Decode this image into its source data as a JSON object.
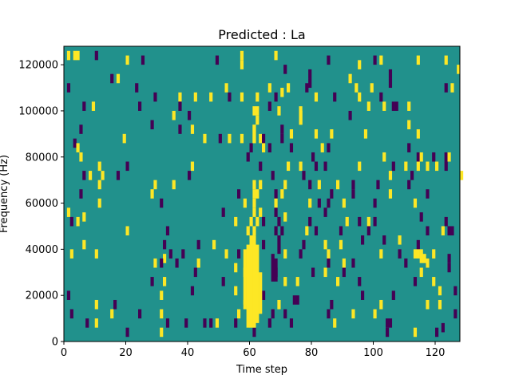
{
  "chart_data": {
    "type": "heatmap",
    "title": "Predicted : La",
    "xlabel": "Time step",
    "ylabel": "Frequency (Hz)",
    "xlim": [
      0,
      128
    ],
    "ylim": [
      0,
      128000
    ],
    "x_ticks": [
      0,
      20,
      40,
      60,
      80,
      100,
      120
    ],
    "y_ticks": [
      0,
      20000,
      40000,
      60000,
      80000,
      100000,
      120000
    ],
    "value_levels": [
      -1,
      0,
      1
    ],
    "colors": {
      "low": "#440154",
      "mid": "#21918c",
      "high": "#fde725"
    },
    "background_value": 0,
    "cell_height_hz": 4000,
    "cells": [
      [
        1,
        122000,
        1
      ],
      [
        3,
        122000,
        1
      ],
      [
        4,
        122000,
        1
      ],
      [
        10,
        122000,
        -1
      ],
      [
        20,
        120000,
        1
      ],
      [
        25,
        120000,
        -1
      ],
      [
        49,
        120000,
        -1
      ],
      [
        57,
        122000,
        1
      ],
      [
        57,
        118000,
        1
      ],
      [
        68,
        122000,
        1
      ],
      [
        85,
        120000,
        -1
      ],
      [
        95,
        118000,
        1
      ],
      [
        100,
        120000,
        -1
      ],
      [
        102,
        120000,
        1
      ],
      [
        114,
        120000,
        1
      ],
      [
        123,
        120000,
        1
      ],
      [
        127,
        116000,
        1
      ],
      [
        15,
        112000,
        -1
      ],
      [
        17,
        112000,
        1
      ],
      [
        71,
        116000,
        -1
      ],
      [
        79,
        114000,
        -1
      ],
      [
        79,
        110000,
        -1
      ],
      [
        92,
        112000,
        1
      ],
      [
        105,
        114000,
        -1
      ],
      [
        105,
        110000,
        -1
      ],
      [
        1,
        108000,
        -1
      ],
      [
        23,
        108000,
        -1
      ],
      [
        52,
        108000,
        1
      ],
      [
        66,
        108000,
        1
      ],
      [
        70,
        106000,
        1
      ],
      [
        72,
        108000,
        1
      ],
      [
        78,
        108000,
        -1
      ],
      [
        94,
        108000,
        1
      ],
      [
        99,
        108000,
        1
      ],
      [
        123,
        108000,
        -1
      ],
      [
        125,
        108000,
        1
      ],
      [
        29,
        104000,
        -1
      ],
      [
        37,
        104000,
        1
      ],
      [
        42,
        104000,
        1
      ],
      [
        47,
        104000,
        1
      ],
      [
        53,
        104000,
        -1
      ],
      [
        57,
        104000,
        1
      ],
      [
        62,
        104000,
        1
      ],
      [
        68,
        104000,
        -1
      ],
      [
        81,
        104000,
        1
      ],
      [
        87,
        104000,
        -1
      ],
      [
        95,
        104000,
        1
      ],
      [
        102,
        104000,
        -1
      ],
      [
        6,
        100000,
        -1
      ],
      [
        9,
        100000,
        1
      ],
      [
        24,
        100000,
        -1
      ],
      [
        37,
        100000,
        -1
      ],
      [
        62,
        98000,
        1
      ],
      [
        62,
        94000,
        1
      ],
      [
        66,
        100000,
        -1
      ],
      [
        98,
        100000,
        1
      ],
      [
        103,
        100000,
        1
      ],
      [
        106,
        100000,
        -1
      ],
      [
        107,
        100000,
        -1
      ],
      [
        111,
        100000,
        1
      ],
      [
        61,
        98000,
        1
      ],
      [
        69,
        98000,
        1
      ],
      [
        76,
        98000,
        1
      ],
      [
        76,
        94000,
        1
      ],
      [
        92,
        96000,
        -1
      ],
      [
        35,
        96000,
        1
      ],
      [
        40,
        96000,
        -1
      ],
      [
        5,
        90000,
        -1
      ],
      [
        28,
        92000,
        -1
      ],
      [
        37,
        90000,
        -1
      ],
      [
        41,
        90000,
        1
      ],
      [
        61,
        90000,
        1
      ],
      [
        70,
        90000,
        -1
      ],
      [
        111,
        92000,
        1
      ],
      [
        19,
        86000,
        1
      ],
      [
        45,
        86000,
        1
      ],
      [
        50,
        86000,
        -1
      ],
      [
        53,
        86000,
        1
      ],
      [
        57,
        86000,
        1
      ],
      [
        61,
        86000,
        1
      ],
      [
        63,
        86000,
        1
      ],
      [
        64,
        86000,
        -1
      ],
      [
        70,
        86000,
        -1
      ],
      [
        73,
        88000,
        1
      ],
      [
        81,
        88000,
        1
      ],
      [
        86,
        88000,
        1
      ],
      [
        97,
        88000,
        1
      ],
      [
        114,
        88000,
        1
      ],
      [
        3,
        84000,
        -1
      ],
      [
        4,
        82000,
        1
      ],
      [
        60,
        82000,
        -1
      ],
      [
        64,
        82000,
        1
      ],
      [
        66,
        82000,
        -1
      ],
      [
        73,
        82000,
        -1
      ],
      [
        83,
        82000,
        1
      ],
      [
        85,
        82000,
        -1
      ],
      [
        111,
        82000,
        -1
      ],
      [
        5,
        78000,
        1
      ],
      [
        59,
        78000,
        -1
      ],
      [
        80,
        78000,
        -1
      ],
      [
        103,
        78000,
        1
      ],
      [
        114,
        78000,
        -1
      ],
      [
        115,
        78000,
        1
      ],
      [
        119,
        78000,
        -1
      ],
      [
        123,
        78000,
        -1
      ],
      [
        124,
        78000,
        1
      ],
      [
        11,
        74000,
        1
      ],
      [
        20,
        74000,
        -1
      ],
      [
        41,
        74000,
        1
      ],
      [
        63,
        74000,
        -1
      ],
      [
        72,
        74000,
        1
      ],
      [
        76,
        74000,
        1
      ],
      [
        81,
        74000,
        -1
      ],
      [
        84,
        74000,
        -1
      ],
      [
        95,
        74000,
        1
      ],
      [
        106,
        74000,
        -1
      ],
      [
        110,
        74000,
        1
      ],
      [
        114,
        74000,
        1
      ],
      [
        117,
        74000,
        1
      ],
      [
        120,
        74000,
        1
      ],
      [
        123,
        74000,
        -1
      ],
      [
        6,
        70000,
        -1
      ],
      [
        8,
        70000,
        1
      ],
      [
        12,
        70000,
        1
      ],
      [
        17,
        70000,
        -1
      ],
      [
        40,
        70000,
        -1
      ],
      [
        67,
        70000,
        -1
      ],
      [
        77,
        70000,
        -1
      ],
      [
        105,
        70000,
        1
      ],
      [
        112,
        70000,
        -1
      ],
      [
        128,
        70000,
        1
      ],
      [
        11,
        66000,
        1
      ],
      [
        29,
        66000,
        1
      ],
      [
        35,
        66000,
        1
      ],
      [
        61,
        66000,
        1
      ],
      [
        63,
        66000,
        1
      ],
      [
        71,
        66000,
        1
      ],
      [
        79,
        66000,
        -1
      ],
      [
        82,
        66000,
        1
      ],
      [
        88,
        66000,
        1
      ],
      [
        93,
        66000,
        -1
      ],
      [
        101,
        66000,
        -1
      ],
      [
        111,
        66000,
        -1
      ],
      [
        5,
        62000,
        -1
      ],
      [
        28,
        62000,
        1
      ],
      [
        56,
        62000,
        -1
      ],
      [
        61,
        62000,
        1
      ],
      [
        62,
        62000,
        1
      ],
      [
        68,
        62000,
        -1
      ],
      [
        70,
        62000,
        1
      ],
      [
        86,
        62000,
        -1
      ],
      [
        93,
        62000,
        -1
      ],
      [
        105,
        62000,
        1
      ],
      [
        117,
        62000,
        -1
      ],
      [
        11,
        58000,
        1
      ],
      [
        31,
        58000,
        -1
      ],
      [
        58,
        58000,
        1
      ],
      [
        61,
        58000,
        1
      ],
      [
        68,
        58000,
        1
      ],
      [
        79,
        58000,
        1
      ],
      [
        82,
        58000,
        -1
      ],
      [
        85,
        58000,
        -1
      ],
      [
        90,
        58000,
        1
      ],
      [
        100,
        58000,
        -1
      ],
      [
        113,
        58000,
        1
      ],
      [
        1,
        54000,
        1
      ],
      [
        6,
        52000,
        1
      ],
      [
        51,
        54000,
        -1
      ],
      [
        61,
        54000,
        1
      ],
      [
        63,
        54000,
        1
      ],
      [
        68,
        54000,
        -1
      ],
      [
        71,
        52000,
        1
      ],
      [
        84,
        54000,
        -1
      ],
      [
        100,
        50000,
        -1
      ],
      [
        115,
        52000,
        -1
      ],
      [
        2,
        50000,
        -1
      ],
      [
        4,
        50000,
        1
      ],
      [
        55,
        50000,
        1
      ],
      [
        60,
        50000,
        1
      ],
      [
        62,
        50000,
        1
      ],
      [
        64,
        50000,
        -1
      ],
      [
        69,
        50000,
        -1
      ],
      [
        79,
        50000,
        -1
      ],
      [
        91,
        50000,
        1
      ],
      [
        95,
        50000,
        -1
      ],
      [
        98,
        50000,
        1
      ],
      [
        123,
        50000,
        -1
      ],
      [
        20,
        46000,
        1
      ],
      [
        33,
        46000,
        -1
      ],
      [
        59,
        46000,
        1
      ],
      [
        61,
        46000,
        1
      ],
      [
        68,
        46000,
        -1
      ],
      [
        70,
        46000,
        -1
      ],
      [
        78,
        46000,
        1
      ],
      [
        81,
        46000,
        -1
      ],
      [
        89,
        46000,
        -1
      ],
      [
        98,
        46000,
        -1
      ],
      [
        117,
        46000,
        -1
      ],
      [
        122,
        46000,
        1
      ],
      [
        124,
        46000,
        -1
      ],
      [
        125,
        46000,
        -1
      ],
      [
        6,
        40000,
        1
      ],
      [
        32,
        40000,
        -1
      ],
      [
        43,
        40000,
        -1
      ],
      [
        48,
        40000,
        1
      ],
      [
        64,
        40000,
        -1
      ],
      [
        77,
        40000,
        -1
      ],
      [
        84,
        40000,
        1
      ],
      [
        89,
        40000,
        1
      ],
      [
        96,
        42000,
        -1
      ],
      [
        103,
        42000,
        -1
      ],
      [
        108,
        42000,
        1
      ],
      [
        114,
        40000,
        -1
      ],
      [
        2,
        36000,
        1
      ],
      [
        10,
        36000,
        1
      ],
      [
        32,
        34000,
        1
      ],
      [
        34,
        36000,
        -1
      ],
      [
        38,
        36000,
        -1
      ],
      [
        52,
        36000,
        1
      ],
      [
        56,
        36000,
        -1
      ],
      [
        71,
        36000,
        1
      ],
      [
        76,
        36000,
        -1
      ],
      [
        85,
        36000,
        1
      ],
      [
        102,
        36000,
        1
      ],
      [
        108,
        36000,
        -1
      ],
      [
        113,
        36000,
        1
      ],
      [
        119,
        36000,
        1
      ],
      [
        124,
        34000,
        -1
      ],
      [
        29,
        32000,
        1
      ],
      [
        31,
        32000,
        -1
      ],
      [
        36,
        32000,
        -1
      ],
      [
        43,
        32000,
        1
      ],
      [
        85,
        32000,
        -1
      ],
      [
        90,
        32000,
        1
      ],
      [
        93,
        32000,
        -1
      ],
      [
        110,
        32000,
        -1
      ],
      [
        117,
        32000,
        -1
      ],
      [
        42,
        28000,
        -1
      ],
      [
        55,
        30000,
        1
      ],
      [
        58,
        28000,
        1
      ],
      [
        68,
        28000,
        -1
      ],
      [
        80,
        28000,
        -1
      ],
      [
        84,
        28000,
        1
      ],
      [
        90,
        28000,
        -1
      ],
      [
        115,
        28000,
        1
      ],
      [
        124,
        30000,
        -1
      ],
      [
        28,
        24000,
        -1
      ],
      [
        32,
        24000,
        1
      ],
      [
        51,
        24000,
        -1
      ],
      [
        62,
        24000,
        -1
      ],
      [
        71,
        24000,
        1
      ],
      [
        75,
        24000,
        1
      ],
      [
        88,
        24000,
        1
      ],
      [
        95,
        24000,
        -1
      ],
      [
        113,
        24000,
        -1
      ],
      [
        119,
        24000,
        1
      ],
      [
        1,
        18000,
        -1
      ],
      [
        31,
        18000,
        1
      ],
      [
        41,
        20000,
        -1
      ],
      [
        55,
        20000,
        1
      ],
      [
        59,
        18000,
        -1
      ],
      [
        64,
        18000,
        -1
      ],
      [
        96,
        18000,
        -1
      ],
      [
        106,
        18000,
        -1
      ],
      [
        121,
        20000,
        1
      ],
      [
        126,
        20000,
        -1
      ],
      [
        10,
        14000,
        1
      ],
      [
        16,
        14000,
        -1
      ],
      [
        58,
        14000,
        1
      ],
      [
        69,
        14000,
        1
      ],
      [
        86,
        14000,
        -1
      ],
      [
        102,
        14000,
        1
      ],
      [
        117,
        14000,
        1
      ],
      [
        121,
        14000,
        1
      ],
      [
        2,
        10000,
        -1
      ],
      [
        15,
        10000,
        1
      ],
      [
        24,
        10000,
        -1
      ],
      [
        31,
        10000,
        1
      ],
      [
        56,
        10000,
        1
      ],
      [
        67,
        10000,
        -1
      ],
      [
        71,
        10000,
        -1
      ],
      [
        85,
        10000,
        -1
      ],
      [
        93,
        10000,
        1
      ],
      [
        100,
        10000,
        1
      ],
      [
        126,
        10000,
        -1
      ],
      [
        7,
        6000,
        -1
      ],
      [
        10,
        6000,
        1
      ],
      [
        33,
        6000,
        -1
      ],
      [
        39,
        6000,
        -1
      ],
      [
        45,
        6000,
        -1
      ],
      [
        47,
        6000,
        -1
      ],
      [
        49,
        6000,
        1
      ],
      [
        55,
        6000,
        -1
      ],
      [
        66,
        6000,
        -1
      ],
      [
        73,
        6000,
        -1
      ],
      [
        87,
        6000,
        1
      ],
      [
        104,
        6000,
        -1
      ],
      [
        105,
        6000,
        -1
      ],
      [
        20,
        2000,
        -1
      ],
      [
        31,
        2000,
        1
      ],
      [
        61,
        2000,
        -1
      ],
      [
        104,
        2000,
        -1
      ],
      [
        113,
        2000,
        1
      ],
      [
        120,
        2000,
        -1
      ],
      [
        122,
        4000,
        -1
      ]
    ],
    "bands": [
      {
        "x": 58,
        "y0": 16000,
        "y1": 40000,
        "value": 1
      },
      {
        "x": 59,
        "y0": 6000,
        "y1": 42000,
        "value": 1
      },
      {
        "x": 60,
        "y0": 6000,
        "y1": 46000,
        "value": 1
      },
      {
        "x": 61,
        "y0": 6000,
        "y1": 46000,
        "value": 1
      },
      {
        "x": 62,
        "y0": 8000,
        "y1": 42000,
        "value": 1
      },
      {
        "x": 63,
        "y0": 12000,
        "y1": 30000,
        "value": 1
      },
      {
        "x": 67,
        "y0": 26000,
        "y1": 38000,
        "value": -1
      },
      {
        "x": 68,
        "y0": 26000,
        "y1": 36000,
        "value": -1
      },
      {
        "x": 69,
        "y0": 38000,
        "y1": 46000,
        "value": -1
      },
      {
        "x": 61,
        "y0": 86000,
        "y1": 94000,
        "value": 1
      },
      {
        "x": 76,
        "y0": 94000,
        "y1": 100000,
        "value": 1
      },
      {
        "x": 114,
        "y0": 36000,
        "y1": 40000,
        "value": 1
      },
      {
        "x": 115,
        "y0": 34000,
        "y1": 40000,
        "value": 1
      },
      {
        "x": 116,
        "y0": 34000,
        "y1": 38000,
        "value": 1
      },
      {
        "x": 117,
        "y0": 32000,
        "y1": 36000,
        "value": 1
      },
      {
        "x": 74,
        "y0": 16000,
        "y1": 20000,
        "value": -1
      },
      {
        "x": 75,
        "y0": 16000,
        "y1": 20000,
        "value": -1
      }
    ]
  }
}
